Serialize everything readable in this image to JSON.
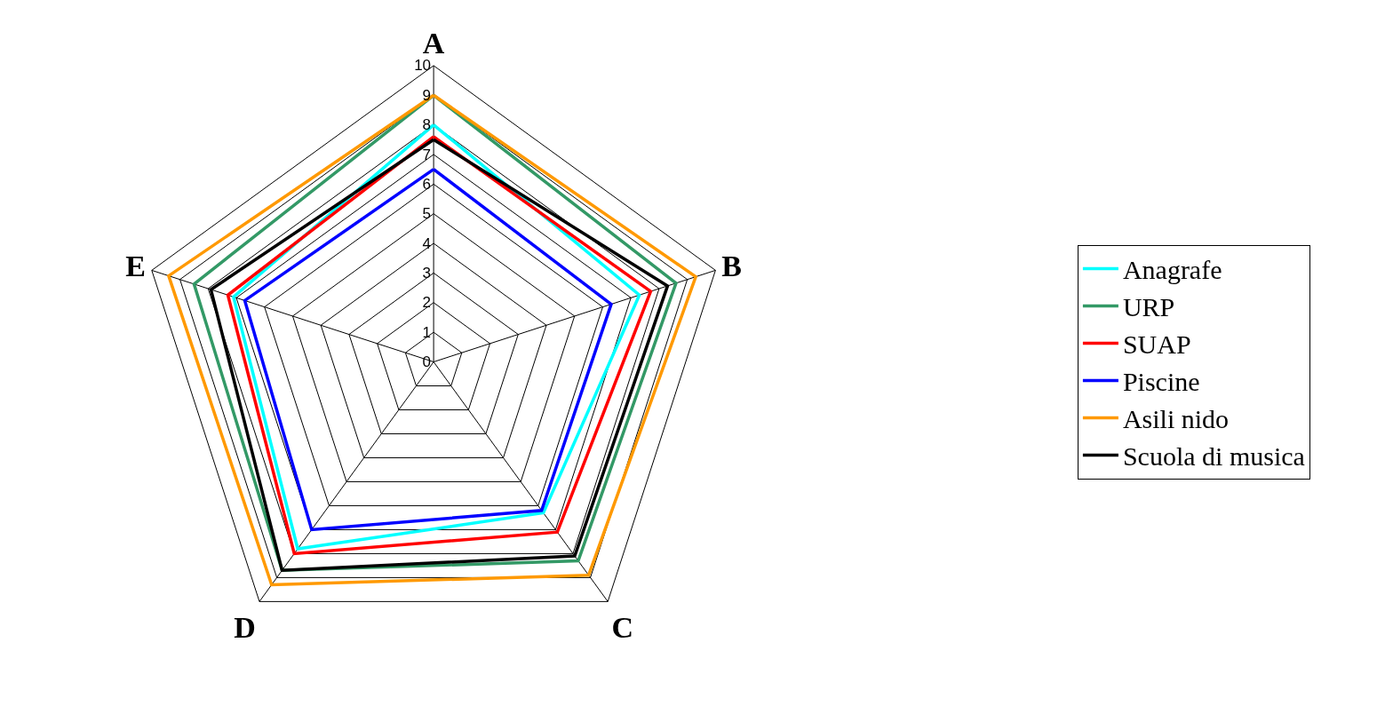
{
  "chart_data": {
    "type": "radar",
    "categories": [
      "A",
      "B",
      "C",
      "D",
      "E"
    ],
    "series": [
      {
        "name": "Anagrafe",
        "color": "#00ffff",
        "values": [
          8,
          7.3,
          6.3,
          7.8,
          7.1
        ]
      },
      {
        "name": "URP",
        "color": "#339966",
        "values": [
          9,
          8.6,
          8.3,
          8.7,
          8.5
        ]
      },
      {
        "name": "SUAP",
        "color": "#ff0000",
        "values": [
          7.6,
          7.7,
          7.1,
          8,
          7.3
        ]
      },
      {
        "name": "Piscine",
        "color": "#0000ff",
        "values": [
          6.5,
          6.3,
          6.2,
          7,
          6.7
        ]
      },
      {
        "name": "Asili nido",
        "color": "#ff9900",
        "values": [
          9,
          9.3,
          8.9,
          9.3,
          9.4
        ]
      },
      {
        "name": "Scuola di musica",
        "color": "#000000",
        "values": [
          7.5,
          8.3,
          8.1,
          8.7,
          7.9
        ]
      }
    ],
    "ylim": [
      0,
      10
    ],
    "yticks": [
      0,
      1,
      2,
      3,
      4,
      5,
      6,
      7,
      8,
      9,
      10
    ],
    "grid": true,
    "legend": "right",
    "marker": "none",
    "line_style": "solid"
  }
}
